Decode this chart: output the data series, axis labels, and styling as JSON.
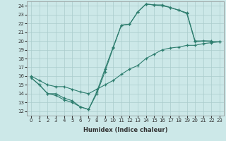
{
  "xlabel": "Humidex (Indice chaleur)",
  "ylabel": "",
  "xlim": [
    -0.5,
    23.5
  ],
  "ylim": [
    11.5,
    24.5
  ],
  "xticks": [
    0,
    1,
    2,
    3,
    4,
    5,
    6,
    7,
    8,
    9,
    10,
    11,
    12,
    13,
    14,
    15,
    16,
    17,
    18,
    19,
    20,
    21,
    22,
    23
  ],
  "yticks": [
    12,
    13,
    14,
    15,
    16,
    17,
    18,
    19,
    20,
    21,
    22,
    23,
    24
  ],
  "bg_color": "#cce8e8",
  "line_color": "#2d7d6e",
  "grid_color": "#aacccc",
  "line1_x": [
    0,
    1,
    2,
    3,
    4,
    5,
    6,
    7,
    8,
    9,
    10,
    11,
    12,
    13,
    14,
    15,
    16,
    17,
    18,
    19,
    20,
    22
  ],
  "line1_y": [
    15.8,
    15.0,
    14.0,
    14.0,
    13.5,
    13.2,
    12.5,
    12.2,
    14.2,
    16.8,
    19.3,
    21.8,
    21.9,
    23.3,
    24.2,
    24.1,
    24.1,
    23.8,
    23.5,
    23.2,
    20.0,
    20.0
  ],
  "line2_x": [
    0,
    1,
    2,
    3,
    4,
    5,
    6,
    7,
    8,
    9,
    10,
    11,
    12,
    13,
    14,
    15,
    16,
    17,
    18,
    19,
    20,
    21,
    22,
    23
  ],
  "line2_y": [
    15.8,
    15.0,
    14.0,
    13.8,
    13.3,
    13.0,
    12.5,
    12.2,
    14.0,
    16.5,
    19.2,
    21.8,
    21.9,
    23.3,
    24.2,
    24.1,
    24.0,
    23.8,
    23.5,
    23.1,
    19.9,
    20.0,
    19.95,
    19.9
  ],
  "line3_x": [
    0,
    1,
    2,
    3,
    4,
    5,
    6,
    7,
    8,
    9,
    10,
    11,
    12,
    13,
    14,
    15,
    16,
    17,
    18,
    19,
    20,
    21,
    22,
    23
  ],
  "line3_y": [
    16.0,
    15.5,
    15.0,
    14.8,
    14.8,
    14.5,
    14.2,
    14.0,
    14.5,
    15.0,
    15.5,
    16.2,
    16.8,
    17.2,
    18.0,
    18.5,
    19.0,
    19.2,
    19.3,
    19.5,
    19.5,
    19.7,
    19.8,
    19.9
  ],
  "tick_fontsize": 5.0,
  "xlabel_fontsize": 6.0
}
